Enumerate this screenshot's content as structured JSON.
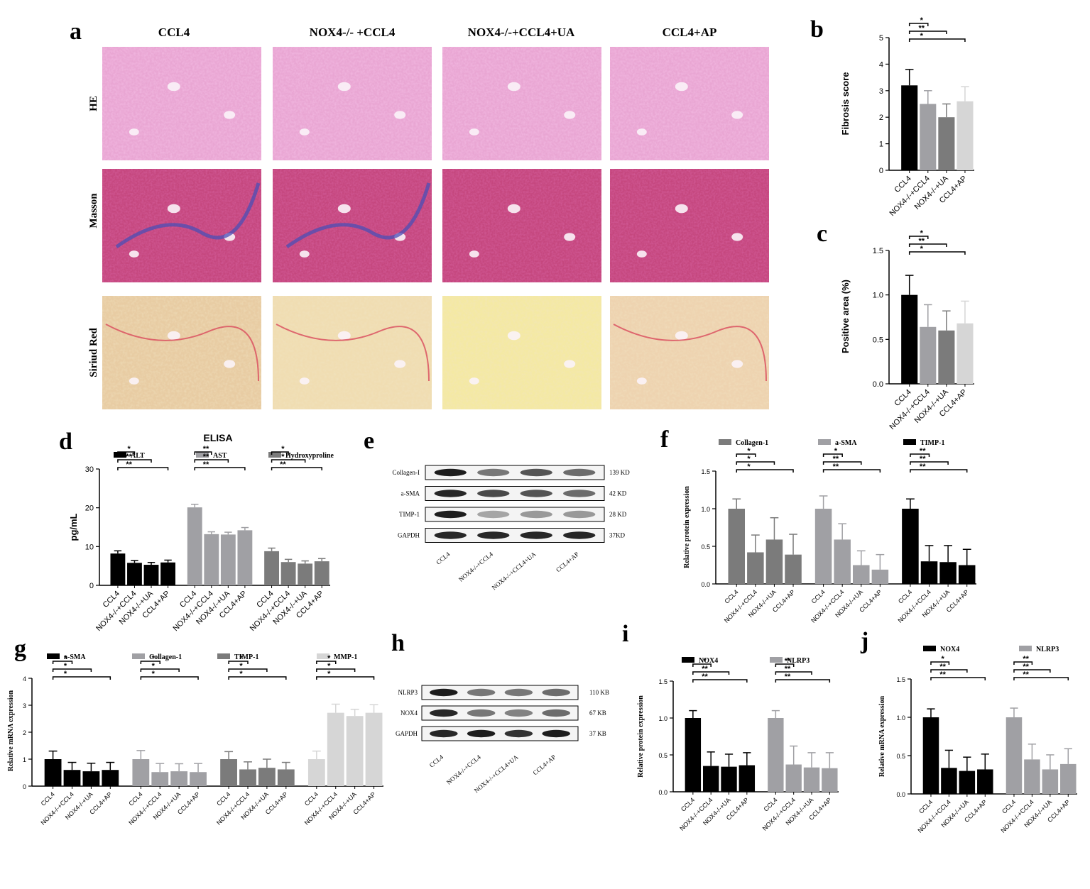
{
  "panel_a": {
    "letter": "a",
    "columns": [
      "CCL4",
      "NOX4-/- +CCL4",
      "NOX4-/-+CCL4+UA",
      "CCL4+AP"
    ],
    "rows": [
      "HE",
      "Masson",
      "Siriud Red"
    ]
  },
  "panel_e": {
    "letter": "e",
    "bands": [
      "Collagen-I",
      "a-SMA",
      "TIMP-1",
      "GAPDH"
    ],
    "sizes": [
      "139 KD",
      "42 KD",
      "28 KD",
      "37KD"
    ],
    "lanes": [
      "CCL4",
      "NOX4-/-+CCL4",
      "NOX4-/-+CCL4+UA",
      "CCL4+AP"
    ]
  },
  "panel_h": {
    "letter": "h",
    "bands": [
      "NLRP3",
      "NOX4",
      "GAPDH"
    ],
    "sizes": [
      "110 KB",
      "67 KB",
      "37 KB"
    ],
    "lanes": [
      "CCL4",
      "NOX4-/-+CCL4",
      "NOX4-/-+CCL4+UA",
      "CCL4+AP"
    ]
  },
  "colors": {
    "black": "#000000",
    "mid_gray": "#a0a0a4",
    "dark_gray": "#7b7b7b",
    "light_gray": "#d6d6d6",
    "he_pink": "#e9a6d3",
    "masson_red": "#c5477e",
    "sirius_yellow": "#eedcac"
  },
  "chart_data": [
    {
      "id": "b",
      "type": "bar",
      "letter": "b",
      "categories": [
        "CCL4",
        "NOX4-/-+CCL4",
        "NOX4-/-+UA",
        "CCL4+AP"
      ],
      "values": [
        3.2,
        2.5,
        2.0,
        2.6
      ],
      "errors": [
        0.6,
        0.5,
        0.5,
        0.55
      ],
      "ylabel": "Fibrosis score",
      "ylim": [
        0,
        5
      ],
      "yticks": [
        "0",
        "1",
        "2",
        "3",
        "4",
        "5"
      ],
      "significance": [
        "*",
        "**",
        "*"
      ]
    },
    {
      "id": "c",
      "type": "bar",
      "letter": "c",
      "categories": [
        "CCL4",
        "NOX4-/-+CCL4",
        "NOX4-/-+UA",
        "CCL4+AP"
      ],
      "values": [
        1.0,
        0.64,
        0.6,
        0.68
      ],
      "errors": [
        0.22,
        0.25,
        0.22,
        0.25
      ],
      "ylabel": "Positive area (%)",
      "ylim": [
        0,
        1.5
      ],
      "yticks": [
        "0.0",
        "0.5",
        "1.0",
        "1.5"
      ],
      "significance": [
        "*",
        "**",
        "*"
      ]
    },
    {
      "id": "d",
      "type": "bar",
      "letter": "d",
      "title": "ELISA",
      "categories": [
        "CCL4",
        "NOX4-/-+CCL4",
        "NOX4-/-+UA",
        "CCL4+AP"
      ],
      "series": [
        {
          "name": "ALT",
          "values": [
            8.2,
            5.8,
            5.3,
            5.9
          ],
          "errors": [
            0.7,
            0.6,
            0.6,
            0.6
          ],
          "significance": [
            "*",
            "**",
            "**"
          ]
        },
        {
          "name": "AST",
          "values": [
            20.1,
            13.2,
            13.1,
            14.2
          ],
          "errors": [
            0.8,
            0.6,
            0.6,
            0.7
          ],
          "significance": [
            "**",
            "**",
            "**"
          ]
        },
        {
          "name": "Hydroxyproline",
          "values": [
            8.8,
            6.0,
            5.6,
            6.2
          ],
          "errors": [
            0.8,
            0.7,
            0.7,
            0.7
          ],
          "significance": [
            "*",
            "*",
            "**"
          ]
        }
      ],
      "ylabel": "pg/mL",
      "ylim": [
        0,
        30
      ],
      "yticks": [
        "0",
        "10",
        "20",
        "30"
      ]
    },
    {
      "id": "f",
      "type": "bar",
      "letter": "f",
      "categories": [
        "CCL4",
        "NOX4-/-+CCL4",
        "NOX4-/-+UA",
        "CCL4+AP"
      ],
      "series": [
        {
          "name": "Collagen-1",
          "values": [
            1.0,
            0.42,
            0.59,
            0.39
          ],
          "errors": [
            0.13,
            0.23,
            0.29,
            0.27
          ],
          "significance": [
            "*",
            "*",
            "*"
          ]
        },
        {
          "name": "a-SMA",
          "values": [
            1.0,
            0.59,
            0.25,
            0.19
          ],
          "errors": [
            0.17,
            0.21,
            0.19,
            0.2
          ],
          "significance": [
            "*",
            "**",
            "**"
          ]
        },
        {
          "name": "TIMP-1",
          "values": [
            1.0,
            0.3,
            0.29,
            0.25
          ],
          "errors": [
            0.13,
            0.21,
            0.22,
            0.21
          ],
          "significance": [
            "**",
            "**",
            "**"
          ]
        }
      ],
      "ylabel": "Relative protein expression",
      "ylim": [
        0,
        1.5
      ],
      "yticks": [
        "0.0",
        "0.5",
        "1.0",
        "1.5"
      ]
    },
    {
      "id": "g",
      "type": "bar",
      "letter": "g",
      "categories": [
        "CCL4",
        "NOX4-/-+CCL4",
        "NOX4-/-+UA",
        "CCL4+AP"
      ],
      "series": [
        {
          "name": "a-SMA",
          "values": [
            1.0,
            0.6,
            0.55,
            0.6
          ],
          "errors": [
            0.3,
            0.28,
            0.3,
            0.28
          ],
          "significance": [
            "*",
            "*",
            "*"
          ]
        },
        {
          "name": "Collagen-1",
          "values": [
            1.0,
            0.52,
            0.55,
            0.52
          ],
          "errors": [
            0.32,
            0.32,
            0.28,
            0.32
          ],
          "significance": [
            "*",
            "*",
            "*"
          ]
        },
        {
          "name": "TIMP-1",
          "values": [
            1.0,
            0.62,
            0.68,
            0.62
          ],
          "errors": [
            0.28,
            0.28,
            0.32,
            0.26
          ],
          "significance": [
            "*",
            "*",
            "*"
          ]
        },
        {
          "name": "MMP-1",
          "values": [
            1.0,
            2.72,
            2.6,
            2.72
          ],
          "errors": [
            0.3,
            0.32,
            0.25,
            0.3
          ],
          "significance": [
            "*",
            "*",
            "*"
          ]
        }
      ],
      "ylabel": "Relative mRNA expression",
      "ylim": [
        0,
        4
      ],
      "yticks": [
        "0",
        "1",
        "2",
        "3",
        "4"
      ]
    },
    {
      "id": "i",
      "type": "bar",
      "letter": "i",
      "categories": [
        "CCL4",
        "NOX4-/-+CCL4",
        "NOX4-/-+UA",
        "CCL4+AP"
      ],
      "series": [
        {
          "name": "NOX4",
          "values": [
            1.0,
            0.35,
            0.34,
            0.36
          ],
          "errors": [
            0.1,
            0.19,
            0.17,
            0.17
          ],
          "significance": [
            "*",
            "**",
            "**"
          ]
        },
        {
          "name": "NLRP3",
          "values": [
            1.0,
            0.37,
            0.33,
            0.32
          ],
          "errors": [
            0.1,
            0.25,
            0.2,
            0.21
          ],
          "significance": [
            "**",
            "**",
            "**"
          ]
        }
      ],
      "ylabel": "Relative protein expression",
      "ylim": [
        0,
        1.5
      ],
      "yticks": [
        "0.0",
        "0.5",
        "1.0",
        "1.5"
      ]
    },
    {
      "id": "j",
      "type": "bar",
      "letter": "j",
      "categories": [
        "CCL4",
        "NOX4-/-+CCL4",
        "NOX4-/-+UA",
        "CCL4+AP"
      ],
      "series": [
        {
          "name": "NOX4",
          "values": [
            1.0,
            0.34,
            0.3,
            0.32
          ],
          "errors": [
            0.11,
            0.23,
            0.18,
            0.2
          ],
          "significance": [
            "*",
            "**",
            "**"
          ]
        },
        {
          "name": "NLRP3",
          "values": [
            1.0,
            0.45,
            0.32,
            0.39
          ],
          "errors": [
            0.12,
            0.2,
            0.19,
            0.2
          ],
          "significance": [
            "**",
            "**",
            "**"
          ]
        }
      ],
      "ylabel": "Relative mRNA expression",
      "ylim": [
        0,
        1.5
      ],
      "yticks": [
        "0.0",
        "0.5",
        "1.0",
        "1.5"
      ]
    }
  ]
}
